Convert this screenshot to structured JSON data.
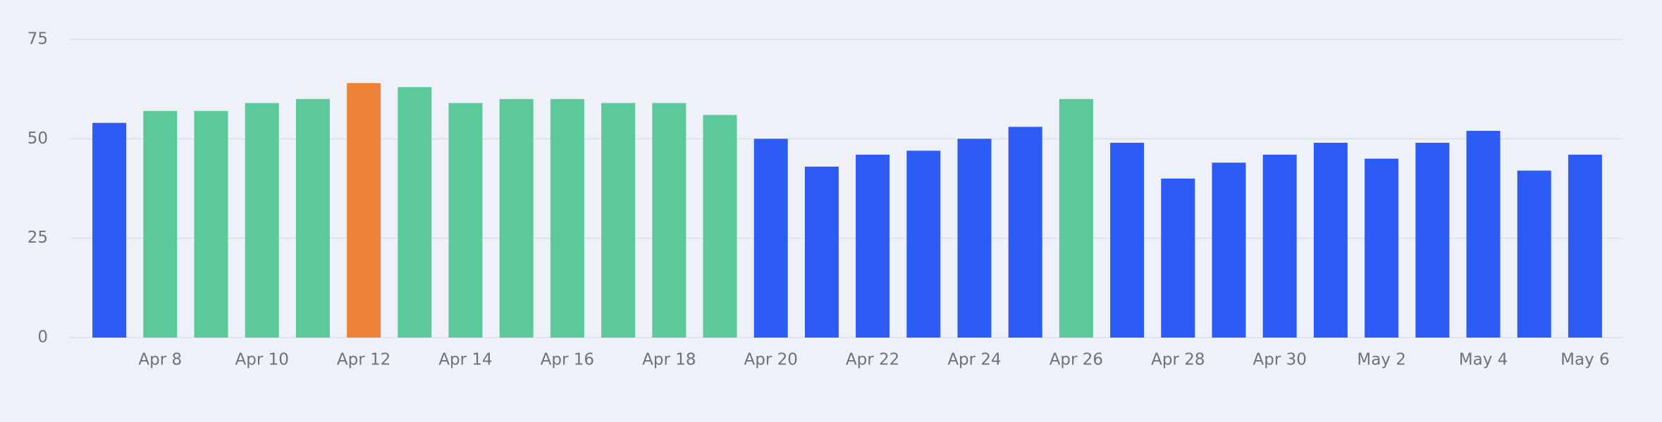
{
  "chart_data": {
    "type": "bar",
    "categories": [
      null,
      "Apr 8",
      null,
      "Apr 10",
      null,
      "Apr 12",
      null,
      "Apr 14",
      null,
      "Apr 16",
      null,
      "Apr 18",
      null,
      "Apr 20",
      null,
      "Apr 22",
      null,
      "Apr 24",
      null,
      "Apr 26",
      null,
      "Apr 28",
      null,
      "Apr 30",
      null,
      "May 2",
      null,
      "May 4",
      null,
      "May 6"
    ],
    "values": [
      54,
      57,
      57,
      59,
      60,
      64,
      63,
      59,
      60,
      60,
      59,
      59,
      56,
      50,
      43,
      46,
      47,
      50,
      53,
      60,
      49,
      40,
      44,
      46,
      49,
      45,
      49,
      52,
      42,
      46
    ],
    "colors": [
      "#2d5bf5",
      "#5cc99b",
      "#5cc99b",
      "#5cc99b",
      "#5cc99b",
      "#ef8239",
      "#5cc99b",
      "#5cc99b",
      "#5cc99b",
      "#5cc99b",
      "#5cc99b",
      "#5cc99b",
      "#5cc99b",
      "#2d5bf5",
      "#2d5bf5",
      "#2d5bf5",
      "#2d5bf5",
      "#2d5bf5",
      "#2d5bf5",
      "#5cc99b",
      "#2d5bf5",
      "#2d5bf5",
      "#2d5bf5",
      "#2d5bf5",
      "#2d5bf5",
      "#2d5bf5",
      "#2d5bf5",
      "#2d5bf5",
      "#2d5bf5",
      "#2d5bf5"
    ],
    "ylim": [
      0,
      75
    ],
    "yticks": [
      0,
      25,
      50,
      75
    ],
    "grid": true
  }
}
